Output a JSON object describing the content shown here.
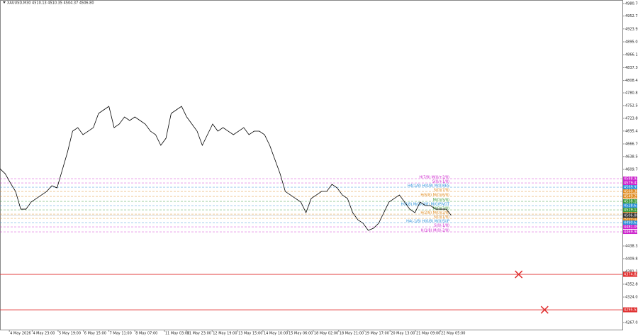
{
  "chart_data": {
    "type": "line",
    "title": "XAUUSD,M30  4510.13 4510.35 4504.37 4506.80",
    "color": "#000000",
    "grid": false,
    "x": [
      0,
      1,
      2,
      3,
      4,
      5,
      6,
      7,
      8,
      9,
      10,
      11,
      12,
      13,
      14,
      15,
      16,
      17,
      18,
      19,
      20,
      21,
      22,
      23,
      24,
      25,
      26,
      27,
      28,
      29,
      30,
      31,
      32,
      33,
      34,
      35,
      36,
      37,
      38,
      39,
      40,
      41,
      42,
      43,
      44,
      45,
      46,
      47,
      48,
      49,
      50,
      51,
      52,
      53,
      54,
      55,
      56,
      57,
      58,
      59,
      60,
      61,
      62,
      63,
      64,
      65,
      66,
      67,
      68,
      69,
      70,
      71,
      72,
      73,
      74,
      75,
      76,
      77,
      78,
      79,
      80,
      81,
      82,
      83,
      84,
      85,
      86,
      87
    ],
    "values": [
      4611.1,
      4600.0,
      4579.4,
      4560.4,
      4520.7,
      4520.7,
      4536.6,
      4544.5,
      4552.4,
      4560.4,
      4573.1,
      4568.3,
      4608.0,
      4647.6,
      4695.2,
      4703.1,
      4687.3,
      4695.2,
      4703.1,
      4734.8,
      4742.8,
      4750.7,
      4703.1,
      4711.1,
      4726.9,
      4719.0,
      4726.9,
      4719.0,
      4711.1,
      4695.2,
      4687.3,
      4663.5,
      4679.3,
      4734.8,
      4742.8,
      4750.7,
      4726.9,
      4711.1,
      4695.2,
      4663.5,
      4687.3,
      4711.1,
      4695.2,
      4703.1,
      4695.2,
      4687.3,
      4695.2,
      4703.1,
      4687.3,
      4695.2,
      4695.2,
      4687.3,
      4663.5,
      4631.8,
      4600.0,
      4560.4,
      4552.4,
      4544.5,
      4536.6,
      4512.8,
      4544.5,
      4552.4,
      4560.4,
      4560.4,
      4576.2,
      4568.3,
      4552.4,
      4544.5,
      4512.8,
      4496.9,
      4489.0,
      4473.2,
      4477.9,
      4489.0,
      4512.8,
      4536.6,
      4544.5,
      4552.4,
      4536.6,
      4520.7,
      4512.8,
      4536.6,
      4528.7,
      4528.7,
      4520.7,
      4520.7,
      4520.7,
      4506.8
    ],
    "xlim": [
      0,
      120
    ],
    "xticks": [
      {
        "value": 1.8,
        "label": "4 May 2026"
      },
      {
        "value": 6.2,
        "label": "4 May 23:00"
      },
      {
        "value": 11.2,
        "label": "5 May 19:00"
      },
      {
        "value": 16.1,
        "label": "6 May 15:00"
      },
      {
        "value": 21.0,
        "label": "7 May 11:00"
      },
      {
        "value": 26.0,
        "label": "8 May 07:00"
      },
      {
        "value": 31.7,
        "label": "11 May 03:00"
      },
      {
        "value": 35.9,
        "label": "11 May 23:00"
      },
      {
        "value": 40.9,
        "label": "12 May 19:00"
      },
      {
        "value": 45.8,
        "label": "13 May 15:00"
      },
      {
        "value": 50.7,
        "label": "14 May 10:00"
      },
      {
        "value": 55.5,
        "label": "15 May 06:00"
      },
      {
        "value": 60.4,
        "label": "18 May 02:00"
      },
      {
        "value": 65.3,
        "label": "18 May 21:00"
      },
      {
        "value": 70.2,
        "label": "19 May 17:00"
      },
      {
        "value": 75.2,
        "label": "20 May 13:00"
      },
      {
        "value": 80.1,
        "label": "21 May 09:00"
      },
      {
        "value": 84.9,
        "label": "22 May 05:00"
      }
    ],
    "ylim": [
      4251.2,
      4988.6
    ],
    "yticks": [
      {
        "value": 4980.7,
        "label": "4980.70"
      },
      4952.75,
      4923.95,
      4895.05,
      4866.15,
      {
        "value": 4837.3,
        "label": "4837.30"
      },
      4808.45,
      4780.85,
      {
        "value": 4752.5,
        "label": "4752.50"
      },
      {
        "value": 4723.8,
        "label": "4723.80"
      },
      4695.45,
      {
        "value": 4666.7,
        "label": "4666.70"
      },
      {
        "value": 4638.5,
        "label": "4638.50"
      },
      {
        "value": 4609.7,
        "label": "4609.70"
      },
      4438.35,
      4409.85,
      4381.15,
      {
        "value": 4352.8,
        "label": "4352.80"
      },
      4324.05,
      4295.85,
      4267.05
    ],
    "last_price": {
      "value": 4506.8,
      "label": "4506.80"
    },
    "levels": [
      {
        "label": "H(7/8) M(0/+2/8)",
        "value": 4588.93,
        "color": "#cc22cc"
      },
      {
        "label": "S(0/+1/8)",
        "value": 4579.41,
        "color": "#cc22cc"
      },
      {
        "label": "H4(1/8) H(0/8) M(0)RES",
        "value": 4569.91,
        "color": "#2a8fd8"
      },
      {
        "label": "S(0)(7/8)",
        "value": 4560.38,
        "color": "#e08a1e"
      },
      {
        "label": "H(6/8) M(0)(6/8)",
        "value": 4549.29,
        "color": "#e08a1e"
      },
      {
        "label": "M(0)(5/8)",
        "value": 4538.18,
        "color": "#3a9a3a"
      },
      {
        "label": "H(4/8) M(0)(4/8) M(0)PIVOT",
        "value": 4528.67,
        "color": "#2a8fd8"
      },
      {
        "label": "M(0)(3/8)",
        "value": 4519.17,
        "color": "#3a9a3a"
      },
      {
        "label": "H(2/8) M(0)(2/8)",
        "value": 4509.64,
        "color": "#e08a1e"
      },
      {
        "label": "S(0)(1/8)",
        "value": 4500.11,
        "color": "#e08a1e"
      },
      {
        "label": "H4(-1/8) H(0/8) M(0)SUP",
        "value": 4490.63,
        "color": "#2a8fd8"
      },
      {
        "label": "S(0/-1/8)",
        "value": 4481.09,
        "color": "#cc22cc"
      },
      {
        "label": "H(1/8) M(0/-2/8)",
        "value": 4469.98,
        "color": "#cc22cc"
      }
    ],
    "lines": [
      {
        "value": 4374.82,
        "color": "#e03030"
      },
      {
        "value": 4295.53,
        "color": "#e03030"
      }
    ],
    "markers": [
      {
        "x": 100.0,
        "y": 4374.82,
        "color": "#e03030"
      },
      {
        "x": 105.0,
        "y": 4295.53,
        "color": "#e03030"
      }
    ]
  }
}
